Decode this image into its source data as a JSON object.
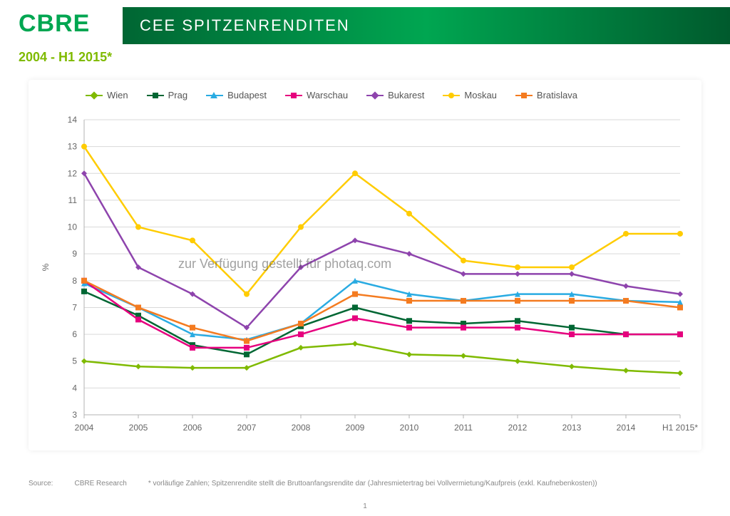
{
  "brand": {
    "logo": "CBRE"
  },
  "header": {
    "title": "CEE SPITZENRENDITEN"
  },
  "subheading": "2004 - H1 2015*",
  "watermark": "zur Verfügung gestellt für photaq.com",
  "footer": {
    "source_label": "Source:",
    "source_value": "CBRE Research",
    "note": "* vorläufige Zahlen; Spitzenrendite stellt die Bruttoanfangsrendite dar (Jahresmietertrag bei Vollvermietung/Kaufpreis (exkl. Kaufnebenkosten))"
  },
  "page_number": "1",
  "chart": {
    "type": "line",
    "background_color": "#ffffff",
    "grid_color": "#d9d9d9",
    "axis_color": "#b3b3b3",
    "text_color": "#666666",
    "label_fontsize": 12,
    "y_axis": {
      "label": "%",
      "min": 3,
      "max": 14,
      "tick_step": 1
    },
    "x_axis": {
      "categories": [
        "2004",
        "2005",
        "2006",
        "2007",
        "2008",
        "2009",
        "2010",
        "2011",
        "2012",
        "2013",
        "2014",
        "H1 2015*"
      ]
    },
    "line_width": 2.5,
    "marker_size": 4,
    "series": [
      {
        "name": "Wien",
        "color": "#7fba00",
        "marker": "diamond",
        "values": [
          5.0,
          4.8,
          4.75,
          4.75,
          5.5,
          5.65,
          5.25,
          5.2,
          5.0,
          4.8,
          4.65,
          4.55
        ]
      },
      {
        "name": "Prag",
        "color": "#006633",
        "marker": "square",
        "values": [
          7.6,
          6.7,
          5.6,
          5.25,
          6.3,
          7.0,
          6.5,
          6.4,
          6.5,
          6.25,
          6.0,
          6.0
        ]
      },
      {
        "name": "Budapest",
        "color": "#29abe2",
        "marker": "triangle",
        "values": [
          7.9,
          7.0,
          6.0,
          5.8,
          6.4,
          8.0,
          7.5,
          7.25,
          7.5,
          7.5,
          7.25,
          7.2
        ]
      },
      {
        "name": "Warschau",
        "color": "#e6007e",
        "marker": "square",
        "values": [
          8.0,
          6.55,
          5.5,
          5.5,
          6.0,
          6.6,
          6.25,
          6.25,
          6.25,
          6.0,
          6.0,
          6.0
        ]
      },
      {
        "name": "Bukarest",
        "color": "#8e44ad",
        "marker": "diamond",
        "values": [
          12.0,
          8.5,
          7.5,
          6.25,
          8.5,
          9.5,
          9.0,
          8.25,
          8.25,
          8.25,
          7.8,
          7.5
        ]
      },
      {
        "name": "Moskau",
        "color": "#ffcc00",
        "marker": "circle",
        "values": [
          13.0,
          10.0,
          9.5,
          7.5,
          10.0,
          12.0,
          10.5,
          8.75,
          8.5,
          8.5,
          9.75,
          9.75
        ]
      },
      {
        "name": "Bratislava",
        "color": "#f47b20",
        "marker": "square",
        "values": [
          8.0,
          7.0,
          6.25,
          5.75,
          6.4,
          7.5,
          7.25,
          7.25,
          7.25,
          7.25,
          7.25,
          7.0
        ]
      }
    ]
  },
  "colors": {
    "header_gradient_start": "#006633",
    "header_gradient_mid": "#00a651",
    "header_gradient_end": "#005a2d",
    "subheading": "#7fba00"
  }
}
